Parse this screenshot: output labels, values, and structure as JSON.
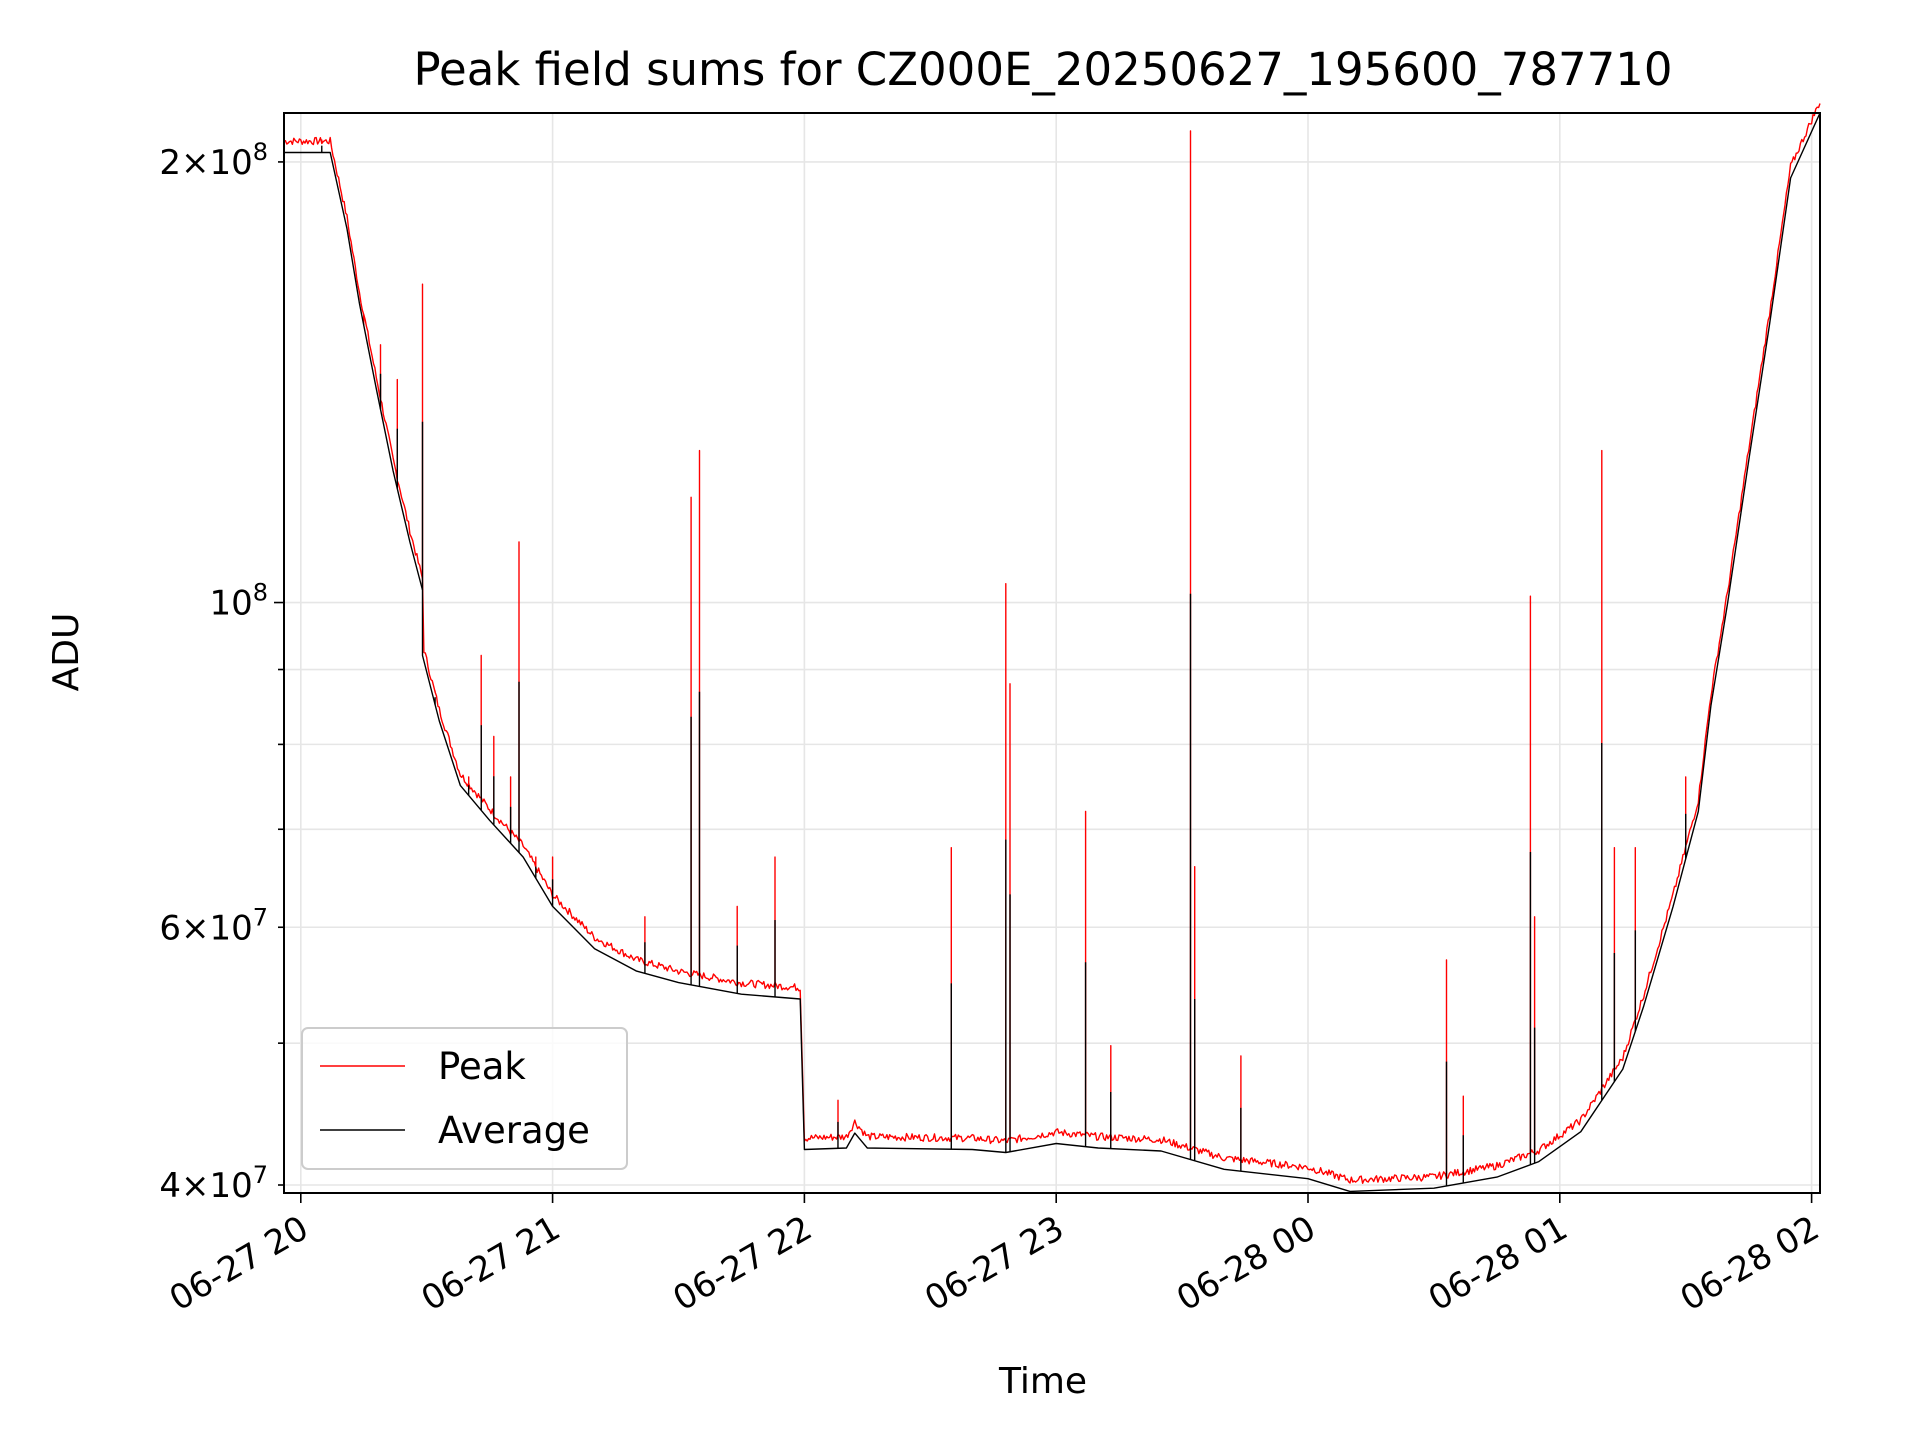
{
  "chart_data": {
    "type": "line",
    "title": "Peak field sums for CZ000E_20250627_195600_787710",
    "xlabel": "Time",
    "ylabel": "ADU",
    "yscale": "log",
    "grid": true,
    "legend_placement": "lower-left",
    "xlim": [
      "2025-06-27T19:56",
      "2025-06-28T02:02"
    ],
    "ylim": [
      39500000,
      216000000
    ],
    "x_ticks": [
      {
        "t": "2025-06-27T20:00",
        "label": "06-27 20"
      },
      {
        "t": "2025-06-27T21:00",
        "label": "06-27 21"
      },
      {
        "t": "2025-06-27T22:00",
        "label": "06-27 22"
      },
      {
        "t": "2025-06-27T23:00",
        "label": "06-27 23"
      },
      {
        "t": "2025-06-28T00:00",
        "label": "06-28 00"
      },
      {
        "t": "2025-06-28T01:00",
        "label": "06-28 01"
      },
      {
        "t": "2025-06-28T02:00",
        "label": "06-28 02"
      }
    ],
    "y_major_ticks": [
      {
        "value": 100000000,
        "mantissa": "",
        "exponent": "8"
      }
    ],
    "y_minor_ticks": [
      {
        "value": 40000000,
        "mantissa": "4",
        "exponent": "7"
      },
      {
        "value": 60000000,
        "mantissa": "6",
        "exponent": "7"
      },
      {
        "value": 200000000,
        "mantissa": "2",
        "exponent": "8"
      }
    ],
    "y_minor_unlabeled": [
      50000000,
      70000000,
      80000000,
      90000000
    ],
    "series": [
      {
        "name": "Peak",
        "color": "#ff0000",
        "baseline_offset": 0.012,
        "spikes": [
          {
            "t": "2025-06-27T20:05",
            "value": 207000000
          },
          {
            "t": "2025-06-27T20:15",
            "value": 155000000
          },
          {
            "t": "2025-06-27T20:19",
            "value": 150000000
          },
          {
            "t": "2025-06-27T20:23",
            "value": 142000000
          },
          {
            "t": "2025-06-27T20:29",
            "value": 165000000
          },
          {
            "t": "2025-06-27T20:32",
            "value": 87000000
          },
          {
            "t": "2025-06-27T20:40",
            "value": 76000000
          },
          {
            "t": "2025-06-27T20:43",
            "value": 92000000
          },
          {
            "t": "2025-06-27T20:46",
            "value": 81000000
          },
          {
            "t": "2025-06-27T20:50",
            "value": 76000000
          },
          {
            "t": "2025-06-27T20:52",
            "value": 110000000
          },
          {
            "t": "2025-06-27T20:56",
            "value": 67000000
          },
          {
            "t": "2025-06-27T21:00",
            "value": 67000000
          },
          {
            "t": "2025-06-27T21:22",
            "value": 61000000
          },
          {
            "t": "2025-06-27T21:33",
            "value": 118000000
          },
          {
            "t": "2025-06-27T21:35",
            "value": 127000000
          },
          {
            "t": "2025-06-27T21:44",
            "value": 62000000
          },
          {
            "t": "2025-06-27T21:53",
            "value": 67000000
          },
          {
            "t": "2025-06-27T22:08",
            "value": 45700000
          },
          {
            "t": "2025-06-27T22:35",
            "value": 68000000
          },
          {
            "t": "2025-06-27T22:48",
            "value": 103000000
          },
          {
            "t": "2025-06-27T22:49",
            "value": 88000000
          },
          {
            "t": "2025-06-27T23:07",
            "value": 72000000
          },
          {
            "t": "2025-06-27T23:13",
            "value": 49800000
          },
          {
            "t": "2025-06-27T23:32",
            "value": 210000000
          },
          {
            "t": "2025-06-27T23:33",
            "value": 66000000
          },
          {
            "t": "2025-06-27T23:44",
            "value": 49000000
          },
          {
            "t": "2025-06-28T00:33",
            "value": 57000000
          },
          {
            "t": "2025-06-28T00:37",
            "value": 46000000
          },
          {
            "t": "2025-06-28T00:53",
            "value": 101000000
          },
          {
            "t": "2025-06-28T00:54",
            "value": 61000000
          },
          {
            "t": "2025-06-28T01:10",
            "value": 127000000
          },
          {
            "t": "2025-06-28T01:13",
            "value": 68000000
          },
          {
            "t": "2025-06-28T01:18",
            "value": 68000000
          },
          {
            "t": "2025-06-28T01:30",
            "value": 76000000
          }
        ]
      },
      {
        "name": "Average",
        "color": "#000000",
        "values": [
          [
            "2025-06-27T19:56",
            203000000
          ],
          [
            "2025-06-27T20:07",
            203000000
          ],
          [
            "2025-06-27T20:11",
            180000000
          ],
          [
            "2025-06-27T20:14",
            160000000
          ],
          [
            "2025-06-27T20:18",
            140000000
          ],
          [
            "2025-06-27T20:22",
            123000000
          ],
          [
            "2025-06-27T20:26",
            110000000
          ],
          [
            "2025-06-27T20:29",
            102000000
          ],
          [
            "2025-06-27T20:29",
            92000000
          ],
          [
            "2025-06-27T20:33",
            83000000
          ],
          [
            "2025-06-27T20:38",
            75000000
          ],
          [
            "2025-06-27T20:45",
            71000000
          ],
          [
            "2025-06-27T20:53",
            67000000
          ],
          [
            "2025-06-27T21:00",
            62000000
          ],
          [
            "2025-06-27T21:10",
            58000000
          ],
          [
            "2025-06-27T21:20",
            56000000
          ],
          [
            "2025-06-27T21:30",
            55000000
          ],
          [
            "2025-06-27T21:45",
            54000000
          ],
          [
            "2025-06-27T21:59",
            53600000
          ],
          [
            "2025-06-27T22:00",
            42300000
          ],
          [
            "2025-06-27T22:10",
            42400000
          ],
          [
            "2025-06-27T22:12",
            43400000
          ],
          [
            "2025-06-27T22:15",
            42400000
          ],
          [
            "2025-06-27T22:40",
            42300000
          ],
          [
            "2025-06-27T22:48",
            42100000
          ],
          [
            "2025-06-27T23:00",
            42700000
          ],
          [
            "2025-06-27T23:10",
            42400000
          ],
          [
            "2025-06-27T23:25",
            42200000
          ],
          [
            "2025-06-27T23:40",
            41000000
          ],
          [
            "2025-06-28T00:00",
            40400000
          ],
          [
            "2025-06-28T00:10",
            39600000
          ],
          [
            "2025-06-28T00:30",
            39800000
          ],
          [
            "2025-06-28T00:45",
            40500000
          ],
          [
            "2025-06-28T00:55",
            41500000
          ],
          [
            "2025-06-28T01:05",
            43500000
          ],
          [
            "2025-06-28T01:15",
            48000000
          ],
          [
            "2025-06-28T01:20",
            53000000
          ],
          [
            "2025-06-28T01:27",
            62000000
          ],
          [
            "2025-06-28T01:33",
            72000000
          ],
          [
            "2025-06-28T01:36",
            85000000
          ],
          [
            "2025-06-28T01:40",
            100000000
          ],
          [
            "2025-06-28T01:45",
            125000000
          ],
          [
            "2025-06-28T01:50",
            155000000
          ],
          [
            "2025-06-28T01:55",
            195000000
          ],
          [
            "2025-06-28T02:02",
            216000000
          ]
        ]
      }
    ]
  }
}
